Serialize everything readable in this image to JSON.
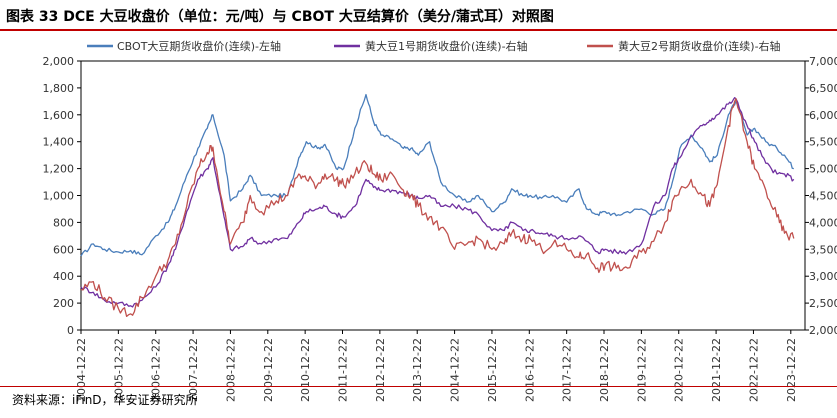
{
  "header": {
    "title": "图表 33 DCE 大豆收盘价（单位：元/吨）与 CBOT 大豆结算价（美分/蒲式耳）对照图"
  },
  "footer": {
    "source": "资料来源：iFinD，华安证券研究所"
  },
  "chart_data": {
    "type": "line",
    "title": "图表 33 DCE 大豆收盘价（单位：元/吨）与 CBOT 大豆结算价（美分/蒲式耳）对照图",
    "categories": [
      "2004-12-22",
      "2005-12-22",
      "2006-12-22",
      "2007-12-22",
      "2008-12-22",
      "2009-12-22",
      "2010-12-22",
      "2011-12-22",
      "2012-12-22",
      "2013-12-22",
      "2014-12-22",
      "2015-12-22",
      "2016-12-22",
      "2017-12-22",
      "2018-12-22",
      "2019-12-22",
      "2020-12-22",
      "2021-12-22",
      "2022-12-22",
      "2023-12-22"
    ],
    "left_axis": {
      "min": 0,
      "max": 2000,
      "ticks": [
        "0",
        "200",
        "400",
        "600",
        "800",
        "1,000",
        "1,200",
        "1,400",
        "1,600",
        "1,800",
        "2,000"
      ]
    },
    "right_axis": {
      "min": 2000,
      "max": 7000,
      "ticks": [
        "2,000",
        "2,500",
        "3,000",
        "3,500",
        "4,000",
        "4,500",
        "5,000",
        "5,500",
        "6,000",
        "6,500",
        "7,000"
      ]
    },
    "series": [
      {
        "name": "CBOT大豆期货收盘价(连续)-左轴",
        "axis": "left",
        "color": "#4a7ebb",
        "x": [
          2004.97,
          2005.3,
          2005.6,
          2005.97,
          2006.3,
          2006.6,
          2006.97,
          2007.3,
          2007.5,
          2007.8,
          2008.1,
          2008.35,
          2008.5,
          2008.8,
          2008.97,
          2009.3,
          2009.5,
          2009.8,
          2010.2,
          2010.5,
          2010.8,
          2011.0,
          2011.3,
          2011.5,
          2011.8,
          2012.0,
          2012.3,
          2012.6,
          2012.8,
          2013.0,
          2013.3,
          2013.6,
          2013.8,
          2014.0,
          2014.3,
          2014.6,
          2014.97,
          2015.3,
          2015.6,
          2015.97,
          2016.3,
          2016.5,
          2016.8,
          2017.0,
          2017.3,
          2017.6,
          2017.97,
          2018.3,
          2018.5,
          2018.8,
          2019.0,
          2019.3,
          2019.6,
          2019.97,
          2020.3,
          2020.6,
          2020.8,
          2021.0,
          2021.3,
          2021.6,
          2021.8,
          2022.0,
          2022.3,
          2022.5,
          2022.8,
          2023.0,
          2023.3,
          2023.6,
          2023.8,
          2024.05
        ],
        "values": [
          550,
          640,
          600,
          580,
          590,
          560,
          700,
          800,
          920,
          1150,
          1350,
          1500,
          1600,
          1300,
          960,
          1050,
          1150,
          1000,
          1000,
          1000,
          1280,
          1400,
          1350,
          1380,
          1200,
          1200,
          1500,
          1750,
          1550,
          1450,
          1420,
          1350,
          1350,
          1300,
          1400,
          1100,
          1000,
          950,
          1000,
          880,
          950,
          1050,
          1000,
          1000,
          980,
          1000,
          950,
          1050,
          900,
          860,
          880,
          850,
          880,
          900,
          860,
          900,
          1100,
          1350,
          1450,
          1350,
          1250,
          1300,
          1600,
          1700,
          1450,
          1500,
          1400,
          1350,
          1300,
          1200
        ]
      },
      {
        "name": "黄大豆1号期货收盘价(连续)-右轴",
        "axis": "right",
        "color": "#7030a0",
        "x": [
          2004.97,
          2005.3,
          2005.6,
          2005.97,
          2006.3,
          2006.6,
          2006.97,
          2007.3,
          2007.5,
          2007.8,
          2008.1,
          2008.35,
          2008.5,
          2008.8,
          2008.97,
          2009.3,
          2009.5,
          2009.8,
          2010.2,
          2010.5,
          2010.8,
          2011.0,
          2011.3,
          2011.5,
          2011.8,
          2012.0,
          2012.3,
          2012.6,
          2012.8,
          2013.0,
          2013.3,
          2013.6,
          2013.8,
          2014.0,
          2014.3,
          2014.6,
          2014.97,
          2015.3,
          2015.6,
          2015.97,
          2016.3,
          2016.5,
          2016.8,
          2017.0,
          2017.3,
          2017.6,
          2017.97,
          2018.3,
          2018.5,
          2018.8,
          2019.0,
          2019.3,
          2019.6,
          2019.97,
          2020.3,
          2020.6,
          2020.8,
          2021.0,
          2021.3,
          2021.6,
          2021.8,
          2022.0,
          2022.3,
          2022.5,
          2022.8,
          2023.0,
          2023.3,
          2023.6,
          2023.8,
          2024.05
        ],
        "values": [
          2800,
          2700,
          2550,
          2500,
          2450,
          2550,
          2800,
          3200,
          3500,
          4200,
          4800,
          5000,
          5200,
          4100,
          3500,
          3550,
          3700,
          3600,
          3700,
          3700,
          4000,
          4200,
          4250,
          4300,
          4150,
          4100,
          4300,
          4800,
          4650,
          4600,
          4600,
          4550,
          4500,
          4450,
          4500,
          4300,
          4300,
          4250,
          4150,
          3850,
          3850,
          4000,
          3850,
          3850,
          3800,
          3750,
          3700,
          3750,
          3650,
          3450,
          3500,
          3450,
          3450,
          3600,
          4300,
          4500,
          5000,
          5200,
          5600,
          5800,
          5900,
          6000,
          6200,
          6300,
          5800,
          5500,
          5100,
          4900,
          4900,
          4800
        ]
      },
      {
        "name": "黄大豆2号期货收盘价(连续)-右轴",
        "axis": "right",
        "color": "#c0504d",
        "x": [
          2004.97,
          2005.3,
          2005.6,
          2005.97,
          2006.3,
          2006.6,
          2006.97,
          2007.3,
          2007.5,
          2007.8,
          2008.1,
          2008.35,
          2008.5,
          2008.8,
          2008.97,
          2009.3,
          2009.5,
          2009.8,
          2010.2,
          2010.5,
          2010.8,
          2011.0,
          2011.3,
          2011.5,
          2011.8,
          2012.0,
          2012.3,
          2012.6,
          2012.8,
          2013.0,
          2013.3,
          2013.6,
          2013.8,
          2014.0,
          2014.3,
          2014.6,
          2014.97,
          2015.3,
          2015.6,
          2015.97,
          2016.3,
          2016.5,
          2016.8,
          2017.0,
          2017.3,
          2017.6,
          2017.97,
          2018.3,
          2018.5,
          2018.8,
          2019.0,
          2019.3,
          2019.6,
          2019.97,
          2020.3,
          2020.6,
          2020.8,
          2021.0,
          2021.3,
          2021.6,
          2021.8,
          2022.0,
          2022.3,
          2022.5,
          2022.8,
          2023.0,
          2023.3,
          2023.6,
          2023.8,
          2024.05
        ],
        "values": [
          2750,
          2900,
          2600,
          2400,
          2300,
          2600,
          3000,
          3300,
          3600,
          4300,
          5000,
          5300,
          5400,
          4200,
          3600,
          4000,
          4500,
          4200,
          4400,
          4500,
          4900,
          4800,
          4700,
          4900,
          4800,
          4700,
          4900,
          5100,
          4900,
          4800,
          4900,
          4600,
          4500,
          4300,
          4100,
          3900,
          3500,
          3600,
          3700,
          3500,
          3600,
          3800,
          3700,
          3700,
          3500,
          3600,
          3500,
          3350,
          3400,
          3150,
          3200,
          3150,
          3150,
          3450,
          3650,
          4000,
          4400,
          4600,
          4800,
          4500,
          4300,
          4700,
          5800,
          6300,
          5500,
          5000,
          4600,
          4100,
          3800,
          3700
        ]
      }
    ]
  }
}
